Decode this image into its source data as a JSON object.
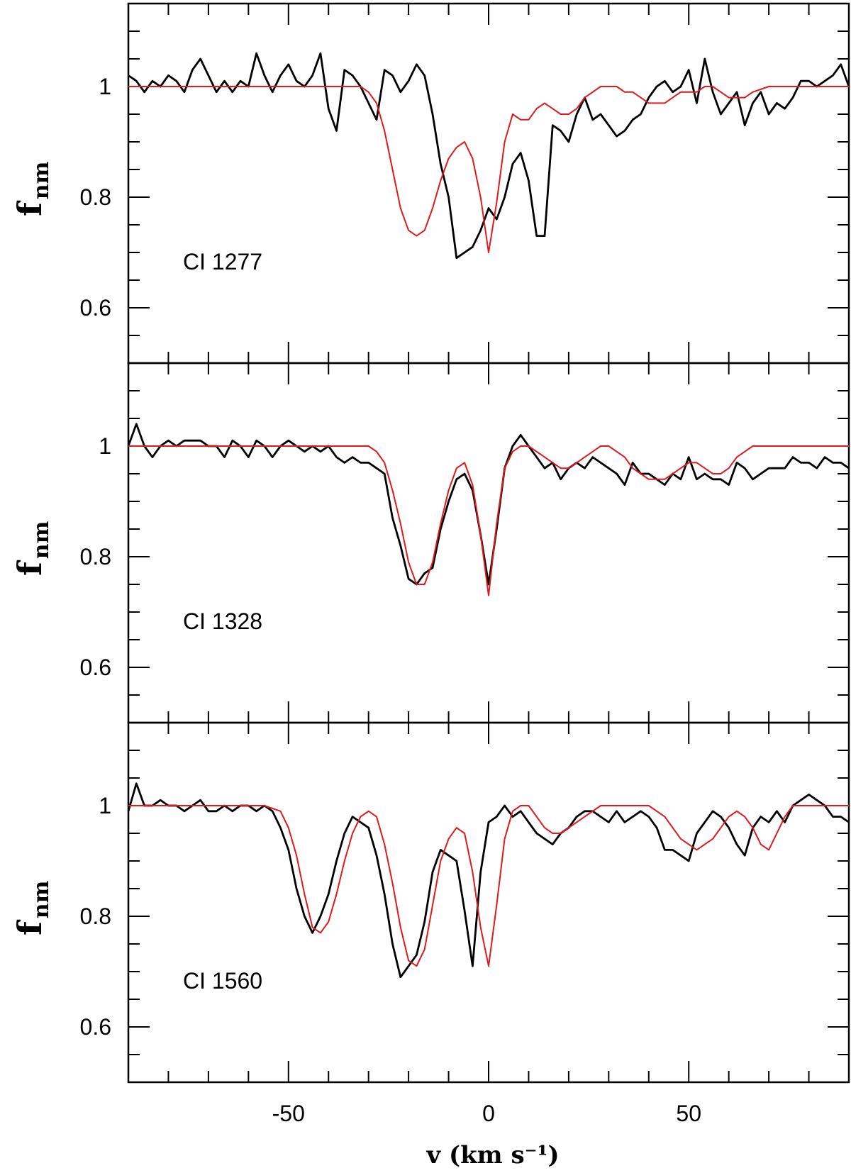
{
  "chart_data": [
    {
      "type": "line",
      "annotation": "CI 1277",
      "ylabel_main": "f",
      "ylabel_sub": "nm",
      "xlim": [
        -90,
        90
      ],
      "ylim": [
        0.5,
        1.15
      ],
      "y_ticks": [
        "1",
        "0.8",
        "0.6"
      ],
      "series": [
        {
          "color": "#000000",
          "x": [
            -90,
            -88,
            -86,
            -84,
            -82,
            -80,
            -78,
            -76,
            -74,
            -72,
            -70,
            -68,
            -66,
            -64,
            -62,
            -60,
            -58,
            -56,
            -54,
            -52,
            -50,
            -48,
            -46,
            -44,
            -42,
            -40,
            -38,
            -36,
            -34,
            -32,
            -30,
            -28,
            -26,
            -24,
            -22,
            -20,
            -18,
            -16,
            -14,
            -12,
            -10,
            -8,
            -6,
            -4,
            -2,
            0,
            2,
            4,
            6,
            8,
            10,
            12,
            14,
            16,
            18,
            20,
            22,
            24,
            26,
            28,
            30,
            32,
            34,
            36,
            38,
            40,
            42,
            44,
            46,
            48,
            50,
            52,
            54,
            56,
            58,
            60,
            62,
            64,
            66,
            68,
            70,
            72,
            74,
            76,
            78,
            80,
            82,
            84,
            86,
            88,
            90
          ],
          "values": [
            1.02,
            1.01,
            0.99,
            1.01,
            1.0,
            1.02,
            1.01,
            0.99,
            1.03,
            1.05,
            1.02,
            0.99,
            1.01,
            0.99,
            1.01,
            1.0,
            1.06,
            1.02,
            0.99,
            1.02,
            1.04,
            1.01,
            1.0,
            1.02,
            1.06,
            0.96,
            0.92,
            1.03,
            1.02,
            1.0,
            0.97,
            0.94,
            1.03,
            1.02,
            0.99,
            1.01,
            1.04,
            1.02,
            0.95,
            0.86,
            0.8,
            0.69,
            0.7,
            0.71,
            0.74,
            0.78,
            0.76,
            0.8,
            0.86,
            0.88,
            0.83,
            0.73,
            0.73,
            0.93,
            0.92,
            0.9,
            0.95,
            0.98,
            0.94,
            0.95,
            0.93,
            0.91,
            0.92,
            0.94,
            0.95,
            0.98,
            1.0,
            1.01,
            0.99,
            1.0,
            1.03,
            0.97,
            1.05,
            0.99,
            0.95,
            0.97,
            0.99,
            0.93,
            0.97,
            0.99,
            0.95,
            0.97,
            0.96,
            0.98,
            1.01,
            1.01,
            1.0,
            1.01,
            1.02,
            1.04,
            1.0
          ]
        },
        {
          "color": "#e0191c",
          "x": [
            -90,
            -40,
            -32,
            -30,
            -28,
            -26,
            -24,
            -22,
            -20,
            -18,
            -16,
            -14,
            -12,
            -10,
            -8,
            -6,
            -4,
            -2,
            0,
            2,
            4,
            6,
            8,
            10,
            12,
            14,
            16,
            18,
            20,
            22,
            24,
            26,
            28,
            30,
            32,
            34,
            36,
            38,
            40,
            42,
            44,
            46,
            48,
            50,
            52,
            54,
            56,
            58,
            60,
            62,
            64,
            66,
            70,
            90
          ],
          "values": [
            1.0,
            1.0,
            1.0,
            0.99,
            0.97,
            0.92,
            0.85,
            0.78,
            0.74,
            0.73,
            0.74,
            0.78,
            0.83,
            0.87,
            0.89,
            0.9,
            0.87,
            0.8,
            0.7,
            0.79,
            0.9,
            0.95,
            0.94,
            0.94,
            0.96,
            0.97,
            0.96,
            0.95,
            0.95,
            0.96,
            0.98,
            0.99,
            1.0,
            1.0,
            1.0,
            0.99,
            0.99,
            0.98,
            0.97,
            0.97,
            0.97,
            0.98,
            0.99,
            0.99,
            0.99,
            1.0,
            1.0,
            0.99,
            0.98,
            0.98,
            0.98,
            0.99,
            1.0,
            1.0
          ]
        }
      ]
    },
    {
      "type": "line",
      "annotation": "CI 1328",
      "ylabel_main": "f",
      "ylabel_sub": "nm",
      "xlim": [
        -90,
        90
      ],
      "ylim": [
        0.5,
        1.15
      ],
      "y_ticks": [
        "1",
        "0.8",
        "0.6"
      ],
      "series": [
        {
          "color": "#000000",
          "x": [
            -90,
            -88,
            -86,
            -84,
            -82,
            -80,
            -78,
            -76,
            -74,
            -72,
            -70,
            -68,
            -66,
            -64,
            -62,
            -60,
            -58,
            -56,
            -54,
            -52,
            -50,
            -48,
            -46,
            -44,
            -42,
            -40,
            -38,
            -36,
            -34,
            -32,
            -30,
            -28,
            -26,
            -24,
            -22,
            -20,
            -18,
            -16,
            -14,
            -12,
            -10,
            -8,
            -6,
            -4,
            -2,
            0,
            2,
            4,
            6,
            8,
            10,
            12,
            14,
            16,
            18,
            20,
            22,
            24,
            26,
            28,
            30,
            32,
            34,
            36,
            38,
            40,
            42,
            44,
            46,
            48,
            50,
            52,
            54,
            56,
            58,
            60,
            62,
            64,
            66,
            68,
            70,
            72,
            74,
            76,
            78,
            80,
            82,
            84,
            86,
            88,
            90
          ],
          "values": [
            1.0,
            1.04,
            1.0,
            0.98,
            1.0,
            1.01,
            1.0,
            1.01,
            1.01,
            1.01,
            1.0,
            1.0,
            0.98,
            1.01,
            1.0,
            0.98,
            1.01,
            1.0,
            0.98,
            1.0,
            1.01,
            1.0,
            0.99,
            1.0,
            0.99,
            1.0,
            0.98,
            0.97,
            0.98,
            0.97,
            0.97,
            0.96,
            0.95,
            0.87,
            0.82,
            0.76,
            0.75,
            0.77,
            0.78,
            0.85,
            0.9,
            0.94,
            0.95,
            0.92,
            0.84,
            0.75,
            0.85,
            0.96,
            1.0,
            1.02,
            1.0,
            0.98,
            0.96,
            0.97,
            0.94,
            0.96,
            0.97,
            0.96,
            0.98,
            0.97,
            0.96,
            0.95,
            0.93,
            0.97,
            0.95,
            0.95,
            0.94,
            0.93,
            0.95,
            0.94,
            0.98,
            0.94,
            0.95,
            0.94,
            0.94,
            0.93,
            0.97,
            0.96,
            0.94,
            0.95,
            0.96,
            0.96,
            0.96,
            0.98,
            0.97,
            0.97,
            0.96,
            0.98,
            0.97,
            0.97,
            0.96
          ]
        },
        {
          "color": "#e0191c",
          "x": [
            -90,
            -36,
            -30,
            -28,
            -26,
            -24,
            -22,
            -20,
            -18,
            -16,
            -14,
            -12,
            -10,
            -8,
            -6,
            -4,
            -2,
            0,
            2,
            4,
            6,
            8,
            10,
            12,
            14,
            16,
            18,
            20,
            22,
            24,
            26,
            28,
            30,
            32,
            34,
            36,
            38,
            40,
            42,
            44,
            46,
            48,
            50,
            52,
            54,
            56,
            58,
            60,
            62,
            64,
            66,
            68,
            70,
            90
          ],
          "values": [
            1.0,
            1.0,
            1.0,
            0.99,
            0.97,
            0.92,
            0.86,
            0.79,
            0.75,
            0.75,
            0.79,
            0.86,
            0.92,
            0.96,
            0.97,
            0.93,
            0.84,
            0.73,
            0.86,
            0.96,
            0.99,
            1.0,
            1.0,
            0.99,
            0.98,
            0.97,
            0.96,
            0.96,
            0.97,
            0.98,
            0.99,
            1.0,
            1.0,
            0.99,
            0.98,
            0.96,
            0.95,
            0.94,
            0.94,
            0.94,
            0.95,
            0.96,
            0.97,
            0.97,
            0.96,
            0.95,
            0.95,
            0.96,
            0.98,
            0.99,
            1.0,
            1.0,
            1.0,
            1.0
          ]
        }
      ]
    },
    {
      "type": "line",
      "annotation": "CI 1560",
      "ylabel_main": "f",
      "ylabel_sub": "nm",
      "xlim": [
        -90,
        90
      ],
      "ylim": [
        0.5,
        1.15
      ],
      "y_ticks": [
        "1",
        "0.8",
        "0.6"
      ],
      "x_ticks": [
        "-50",
        "0",
        "50"
      ],
      "xlabel": "v  (km  s⁻¹)",
      "series": [
        {
          "color": "#000000",
          "x": [
            -90,
            -88,
            -86,
            -84,
            -82,
            -80,
            -78,
            -76,
            -74,
            -72,
            -70,
            -68,
            -66,
            -64,
            -62,
            -60,
            -58,
            -56,
            -54,
            -52,
            -50,
            -48,
            -46,
            -44,
            -42,
            -40,
            -38,
            -36,
            -34,
            -32,
            -30,
            -28,
            -26,
            -24,
            -22,
            -20,
            -18,
            -16,
            -14,
            -12,
            -10,
            -8,
            -6,
            -4,
            -2,
            0,
            2,
            4,
            6,
            8,
            10,
            12,
            14,
            16,
            18,
            20,
            22,
            24,
            26,
            28,
            30,
            32,
            34,
            36,
            38,
            40,
            42,
            44,
            46,
            48,
            50,
            52,
            54,
            56,
            58,
            60,
            62,
            64,
            66,
            68,
            70,
            72,
            74,
            76,
            78,
            80,
            82,
            84,
            86,
            88,
            90
          ],
          "values": [
            0.99,
            1.04,
            1.0,
            1.0,
            1.01,
            1.0,
            1.0,
            0.99,
            1.0,
            1.01,
            0.99,
            0.99,
            1.0,
            0.99,
            1.0,
            1.0,
            0.99,
            1.0,
            0.99,
            0.96,
            0.92,
            0.85,
            0.8,
            0.77,
            0.8,
            0.84,
            0.9,
            0.95,
            0.98,
            0.97,
            0.96,
            0.91,
            0.84,
            0.75,
            0.69,
            0.71,
            0.73,
            0.79,
            0.88,
            0.92,
            0.91,
            0.9,
            0.81,
            0.71,
            0.88,
            0.97,
            0.98,
            1.0,
            0.98,
            0.99,
            0.97,
            0.95,
            0.94,
            0.93,
            0.95,
            0.96,
            0.98,
            0.99,
            0.99,
            0.98,
            0.97,
            0.99,
            0.97,
            0.98,
            0.99,
            0.98,
            0.96,
            0.92,
            0.92,
            0.91,
            0.9,
            0.95,
            0.97,
            0.99,
            0.98,
            0.96,
            0.93,
            0.91,
            0.96,
            0.98,
            0.97,
            0.99,
            0.97,
            1.0,
            1.01,
            1.02,
            1.01,
            1.0,
            0.98,
            0.98,
            0.97
          ]
        },
        {
          "color": "#e0191c",
          "x": [
            -90,
            -56,
            -52,
            -50,
            -48,
            -46,
            -44,
            -42,
            -40,
            -38,
            -36,
            -34,
            -32,
            -30,
            -28,
            -26,
            -24,
            -22,
            -20,
            -18,
            -16,
            -14,
            -12,
            -10,
            -8,
            -6,
            -4,
            -2,
            0,
            2,
            4,
            6,
            8,
            10,
            12,
            14,
            16,
            18,
            20,
            22,
            24,
            26,
            28,
            30,
            32,
            34,
            36,
            38,
            40,
            42,
            44,
            46,
            48,
            50,
            52,
            54,
            56,
            58,
            60,
            62,
            64,
            66,
            68,
            70,
            72,
            74,
            76,
            78,
            80,
            82,
            84,
            90
          ],
          "values": [
            1.0,
            1.0,
            0.99,
            0.96,
            0.91,
            0.84,
            0.78,
            0.77,
            0.79,
            0.84,
            0.9,
            0.95,
            0.98,
            0.99,
            0.98,
            0.93,
            0.86,
            0.78,
            0.72,
            0.71,
            0.74,
            0.82,
            0.9,
            0.94,
            0.96,
            0.95,
            0.88,
            0.78,
            0.71,
            0.82,
            0.94,
            0.99,
            1.0,
            1.0,
            0.98,
            0.96,
            0.95,
            0.95,
            0.96,
            0.97,
            0.98,
            0.99,
            1.0,
            1.0,
            1.0,
            1.0,
            1.0,
            1.0,
            1.0,
            0.99,
            0.98,
            0.96,
            0.94,
            0.93,
            0.92,
            0.93,
            0.94,
            0.96,
            0.98,
            0.99,
            0.98,
            0.96,
            0.93,
            0.92,
            0.95,
            0.98,
            1.0,
            1.0,
            1.0,
            1.0,
            1.0,
            1.0
          ]
        }
      ]
    }
  ]
}
